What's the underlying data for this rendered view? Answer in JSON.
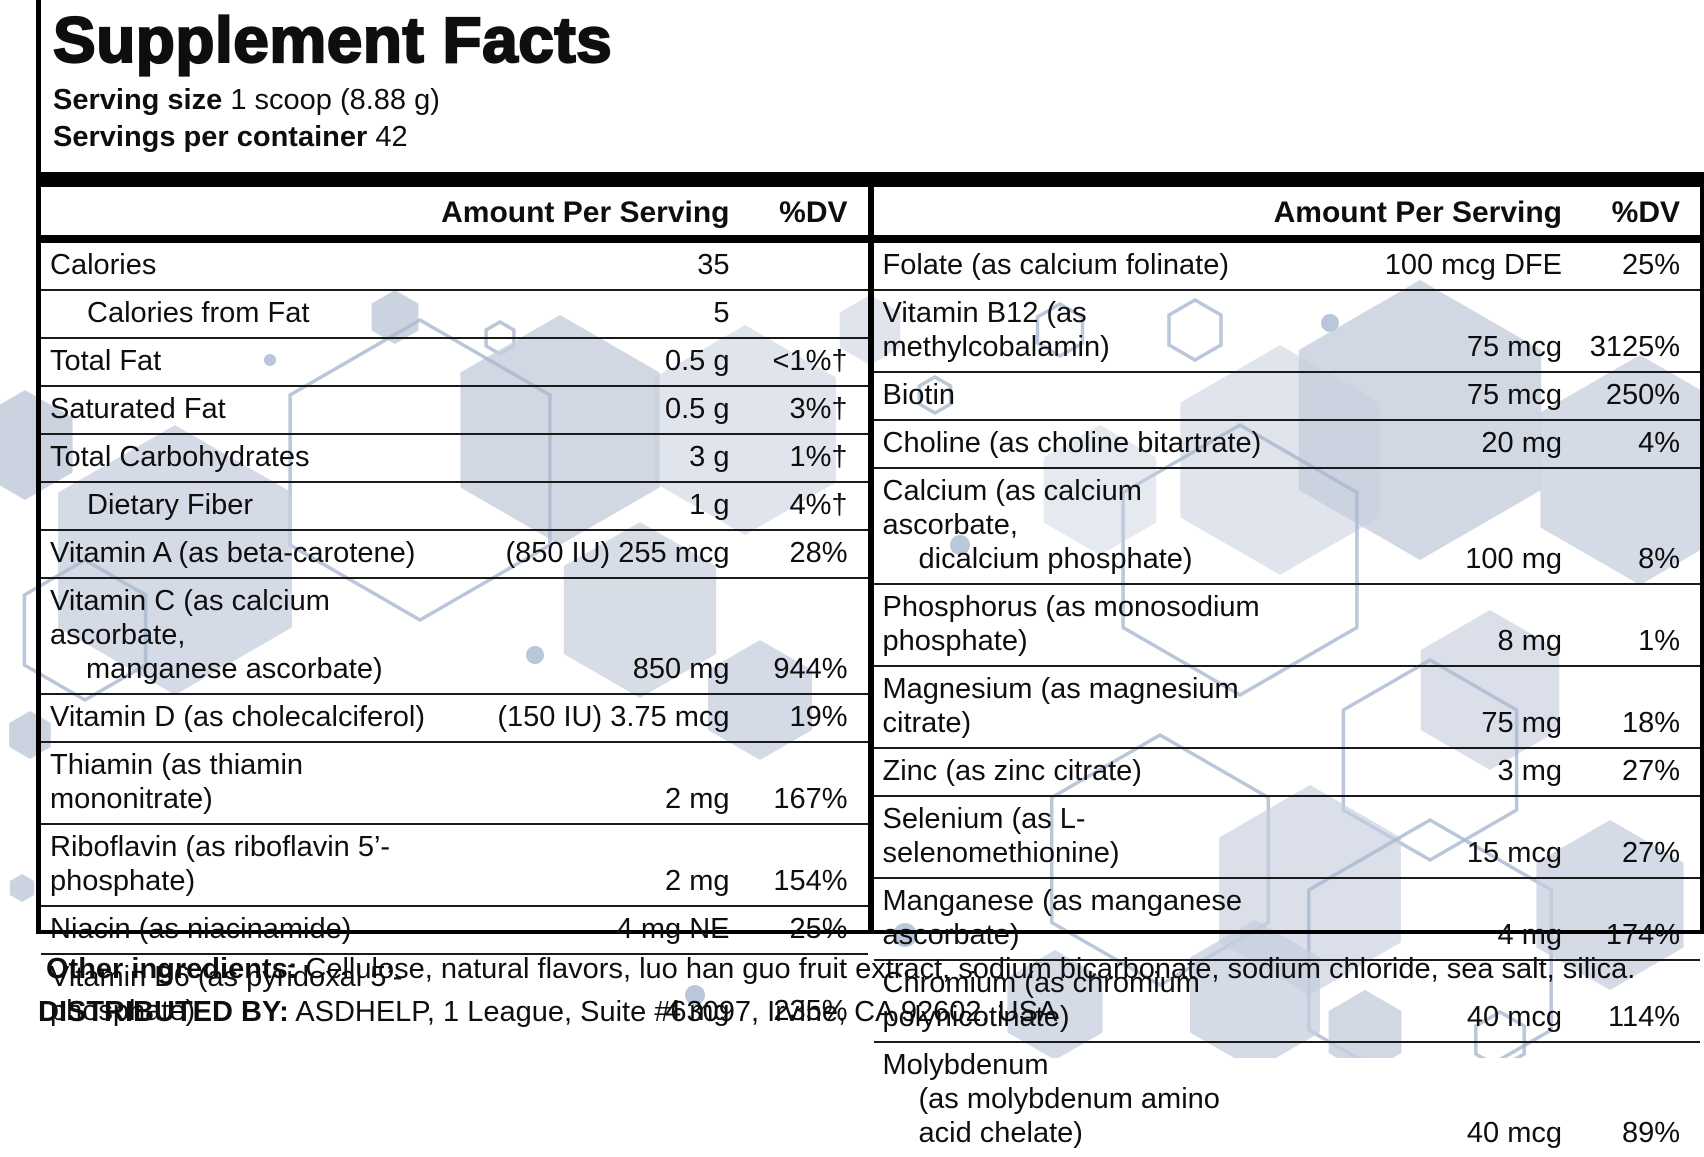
{
  "title": "Supplement Facts",
  "serving": {
    "size_label": "Serving size",
    "size_value": "1 scoop (8.88 g)",
    "per_container_label": "Servings per container",
    "per_container_value": "42"
  },
  "columns": {
    "amount_header": "Amount Per Serving",
    "dv_header": "%DV"
  },
  "left_rows": [
    {
      "name": "Calories",
      "amount": "35",
      "dv": "",
      "indent": false
    },
    {
      "name": "Calories from Fat",
      "amount": "5",
      "dv": "",
      "indent": true
    },
    {
      "name": "Total Fat",
      "amount": "0.5 g",
      "dv": "<1%†",
      "indent": false
    },
    {
      "name": "Saturated Fat",
      "amount": "0.5 g",
      "dv": "3%†",
      "indent": false
    },
    {
      "name": "Total Carbohydrates",
      "amount": "3 g",
      "dv": "1%†",
      "indent": false
    },
    {
      "name": "Dietary Fiber",
      "amount": "1 g",
      "dv": "4%†",
      "indent": true
    },
    {
      "name": "Vitamin A (as beta-carotene)",
      "amount": "(850 IU) 255 mcg",
      "dv": "28%",
      "indent": false
    },
    {
      "name": "Vitamin C (as calcium ascorbate,",
      "name2": "manganese ascorbate)",
      "amount": "850 mg",
      "dv": "944%",
      "indent": false
    },
    {
      "name": "Vitamin D (as cholecalciferol)",
      "amount": "(150 IU) 3.75 mcg",
      "dv": "19%",
      "indent": false
    },
    {
      "name": "Thiamin (as thiamin mononitrate)",
      "amount": "2 mg",
      "dv": "167%",
      "indent": false
    },
    {
      "name": "Riboflavin (as riboflavin 5’-phosphate)",
      "amount": "2 mg",
      "dv": "154%",
      "indent": false
    },
    {
      "name": "Niacin (as niacinamide)",
      "amount": "4 mg NE",
      "dv": "25%",
      "indent": false
    },
    {
      "name": "Vitamin B6 (as pyridoxal 5’-phosphate)",
      "amount": "4 mg",
      "dv": "235%",
      "indent": false
    }
  ],
  "right_rows": [
    {
      "name": "Folate (as calcium folinate)",
      "amount": "100 mcg DFE",
      "dv": "25%",
      "indent": false
    },
    {
      "name": "Vitamin B12 (as methylcobalamin)",
      "amount": "75 mcg",
      "dv": "3125%",
      "indent": false
    },
    {
      "name": "Biotin",
      "amount": "75 mcg",
      "dv": "250%",
      "indent": false
    },
    {
      "name": "Choline (as choline bitartrate)",
      "amount": "20 mg",
      "dv": "4%",
      "indent": false
    },
    {
      "name": "Calcium (as calcium ascorbate,",
      "name2": "dicalcium phosphate)",
      "amount": "100 mg",
      "dv": "8%",
      "indent": false
    },
    {
      "name": "Phosphorus (as monosodium phosphate)",
      "amount": "8 mg",
      "dv": "1%",
      "indent": false
    },
    {
      "name": "Magnesium (as magnesium citrate)",
      "amount": "75 mg",
      "dv": "18%",
      "indent": false
    },
    {
      "name": "Zinc (as zinc citrate)",
      "amount": "3 mg",
      "dv": "27%",
      "indent": false
    },
    {
      "name": "Selenium (as L-selenomethionine)",
      "amount": "15 mcg",
      "dv": "27%",
      "indent": false
    },
    {
      "name": "Manganese (as manganese ascorbate)",
      "amount": "4 mg",
      "dv": "174%",
      "indent": false
    },
    {
      "name": "Chromium (as chromium polynicotinate)",
      "amount": "40 mcg",
      "dv": "114%",
      "indent": false
    },
    {
      "name": "Molybdenum",
      "name2": "(as molybdenum amino acid chelate)",
      "amount": "40 mcg",
      "dv": "89%",
      "indent": false
    }
  ],
  "footnotes": {
    "other_ingredients_label": "Other ingredients:",
    "other_ingredients_text": "Cellulose, natural flavors, luo han guo fruit extract, sodium bicarbonate, sodium chloride, sea salt, silica.",
    "distributed_label": "DISTRIBUTED BY:",
    "distributed_text": "ASDHELP, 1 League, Suite #63097, Irvine, CA 92602, USA"
  },
  "colors": {
    "text": "#0e0e0e",
    "rule": "#000000",
    "hexagon_fill": "#c6cedd",
    "hexagon_stroke": "#a9b8d0"
  }
}
